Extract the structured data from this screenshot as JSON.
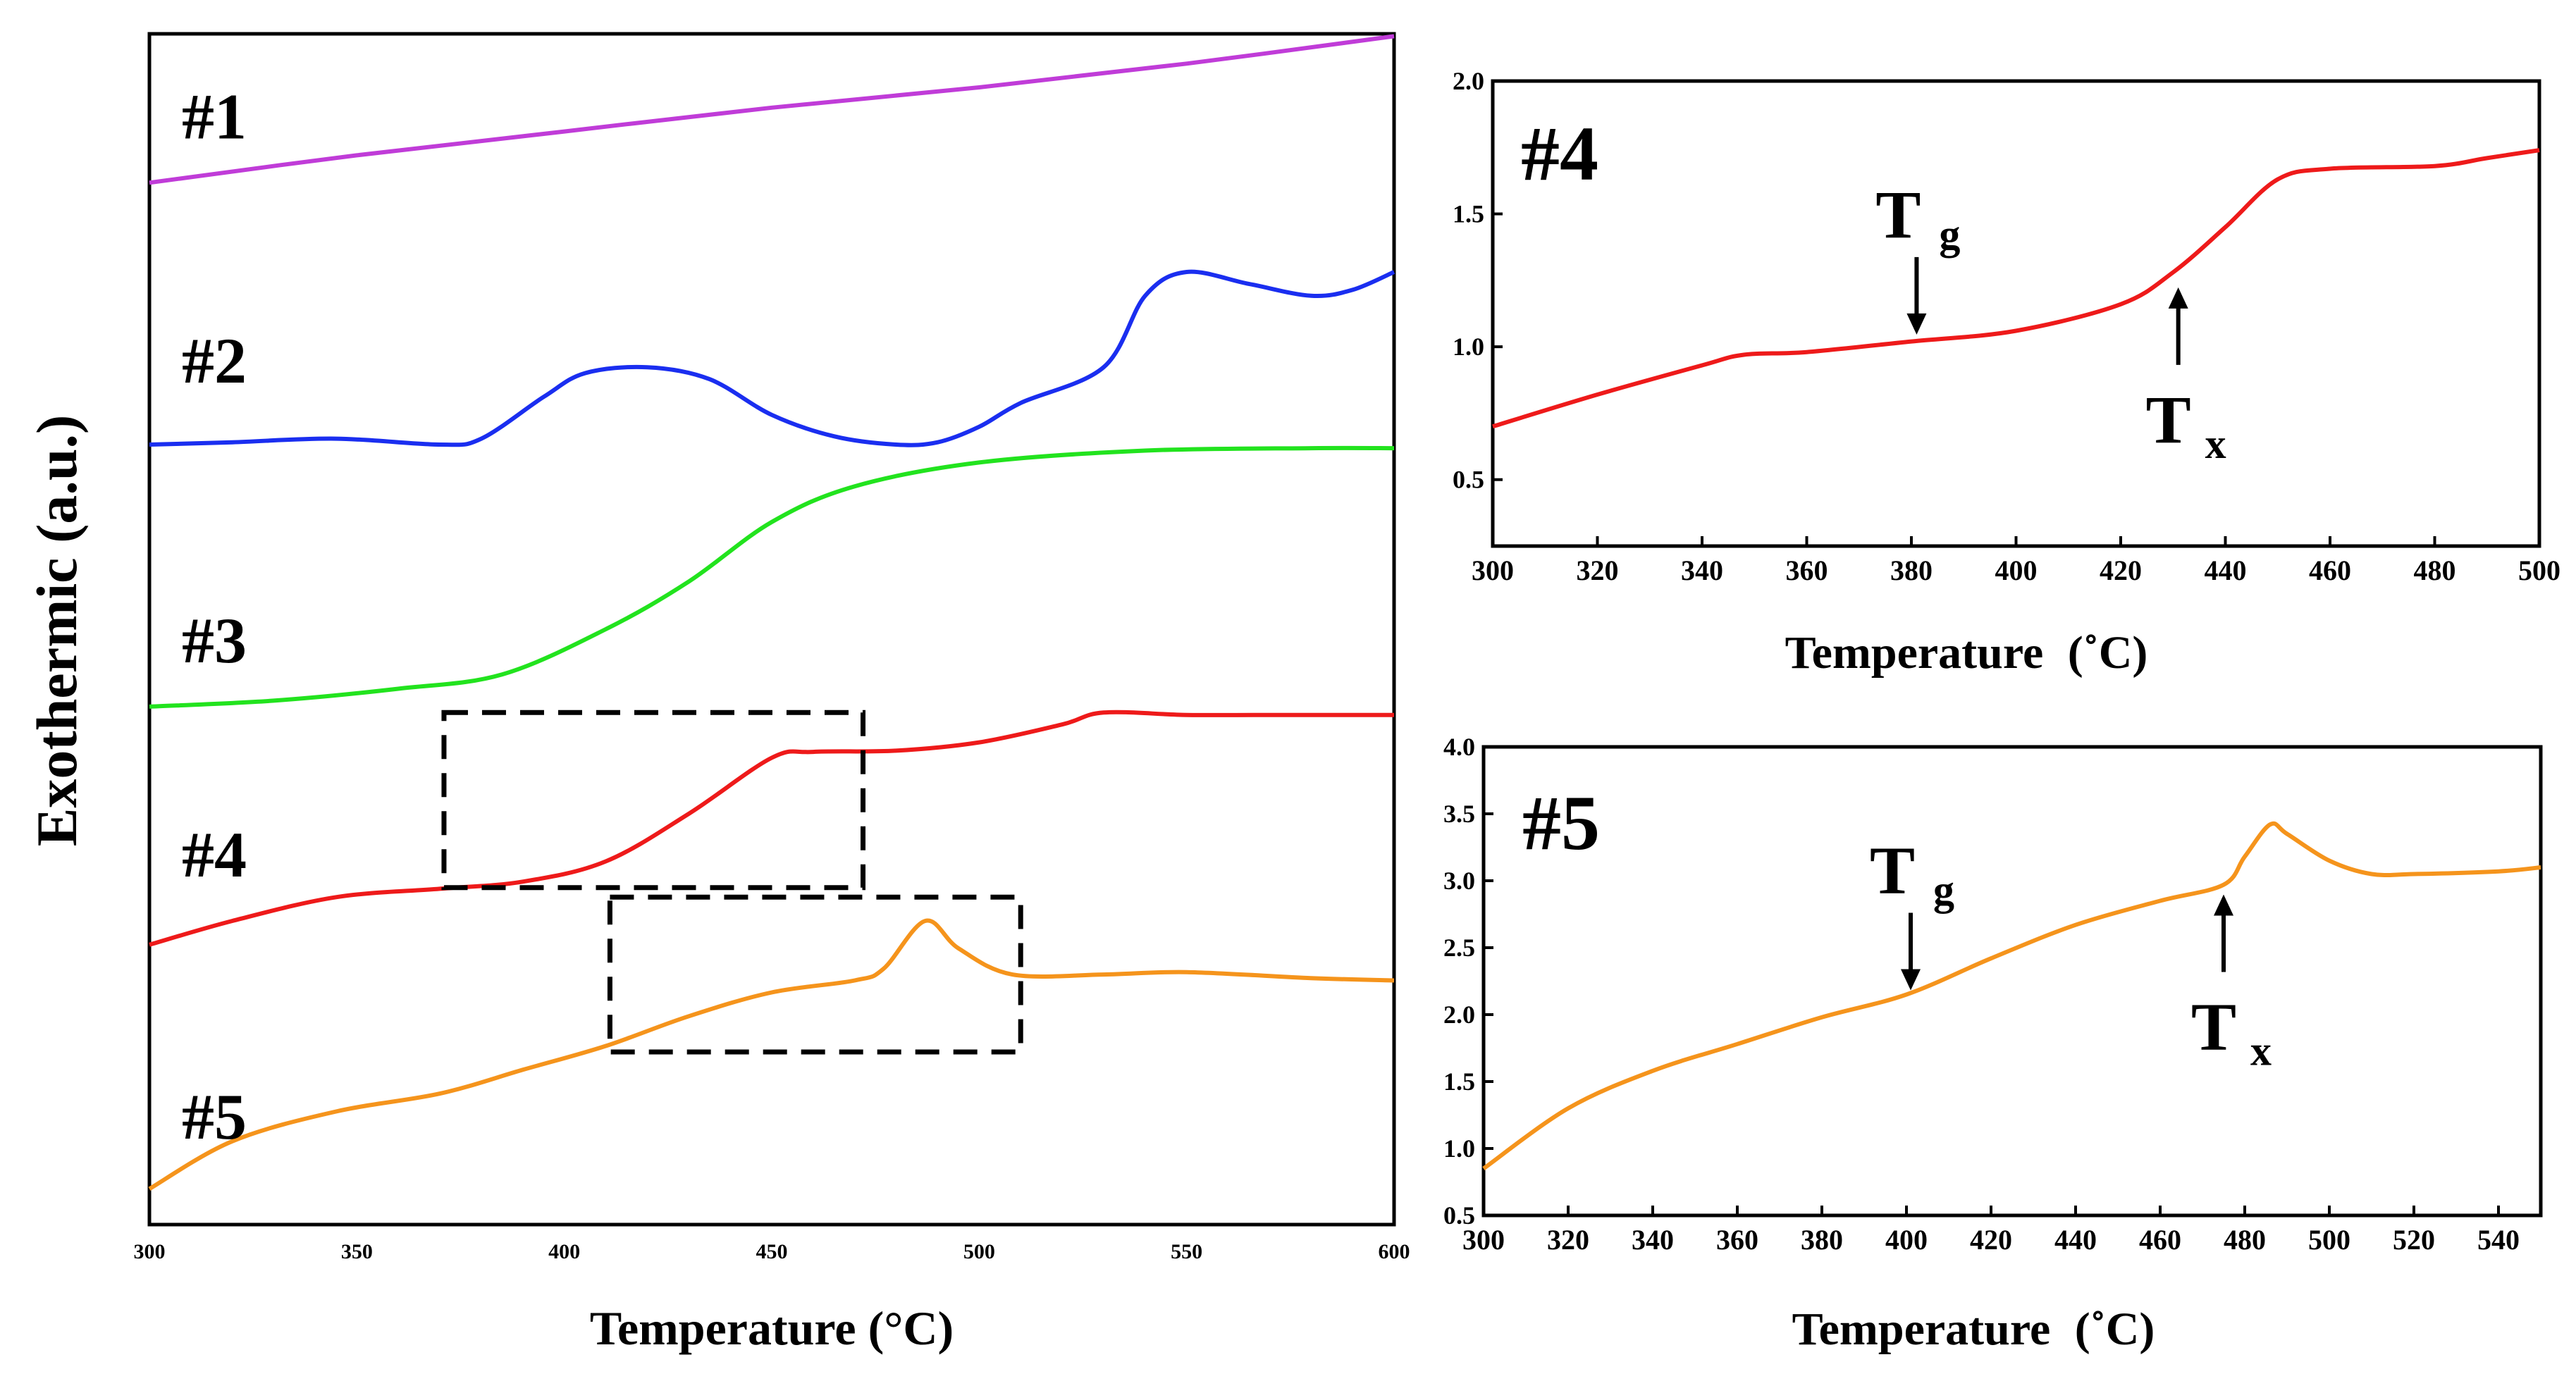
{
  "chart_data": [
    {
      "type": "line",
      "title": "",
      "xlabel": "Temperature (°C)",
      "ylabel": "Exothermic (a.u.)",
      "xlim": [
        300,
        600
      ],
      "ylim": [
        0,
        10
      ],
      "x_ticks": [
        "300",
        "350",
        "400",
        "450",
        "500",
        "550",
        "600"
      ],
      "series": [
        {
          "name": "#1",
          "color": "#c03cd8",
          "x": [
            300,
            350,
            400,
            450,
            500,
            550,
            600
          ],
          "y": [
            8.75,
            8.98,
            9.18,
            9.38,
            9.55,
            9.75,
            9.98
          ]
        },
        {
          "name": "#2",
          "color": "#1a2ef0",
          "x": [
            300,
            320,
            345,
            370,
            380,
            395,
            405,
            420,
            435,
            450,
            465,
            480,
            490,
            500,
            510,
            530,
            540,
            550,
            565,
            580,
            590,
            600
          ],
          "y": [
            6.55,
            6.57,
            6.6,
            6.55,
            6.6,
            6.95,
            7.15,
            7.2,
            7.1,
            6.8,
            6.62,
            6.55,
            6.57,
            6.7,
            6.9,
            7.2,
            7.8,
            8.0,
            7.9,
            7.8,
            7.85,
            8.0
          ],
          "label_y": 7.25
        },
        {
          "name": "#3",
          "color": "#22e31e",
          "x": [
            300,
            330,
            360,
            385,
            410,
            430,
            450,
            470,
            500,
            540,
            580,
            600
          ],
          "y": [
            4.35,
            4.4,
            4.5,
            4.62,
            5.0,
            5.4,
            5.9,
            6.2,
            6.4,
            6.5,
            6.52,
            6.52
          ],
          "label_y": 4.9
        },
        {
          "name": "#4",
          "color": "#ee1a1a",
          "x": [
            300,
            320,
            345,
            370,
            390,
            410,
            430,
            450,
            460,
            480,
            500,
            520,
            530,
            550,
            570,
            600
          ],
          "y": [
            2.35,
            2.55,
            2.75,
            2.82,
            2.88,
            3.05,
            3.45,
            3.92,
            3.97,
            3.98,
            4.05,
            4.2,
            4.3,
            4.28,
            4.28,
            4.28
          ],
          "label_y": 3.1
        },
        {
          "name": "#5",
          "color": "#f5941c",
          "x": [
            300,
            320,
            345,
            370,
            390,
            410,
            430,
            450,
            470,
            477,
            487,
            495,
            508,
            530,
            550,
            580,
            600
          ],
          "y": [
            0.3,
            0.7,
            0.95,
            1.1,
            1.3,
            1.5,
            1.75,
            1.95,
            2.05,
            2.15,
            2.55,
            2.32,
            2.1,
            2.1,
            2.12,
            2.07,
            2.05
          ],
          "label_y": 0.9
        }
      ],
      "zoom_boxes": [
        {
          "x0": 371,
          "x1": 472,
          "y0": 2.83,
          "y1": 4.3
        },
        {
          "x0": 411,
          "x1": 510,
          "y0": 1.45,
          "y1": 2.75
        }
      ]
    },
    {
      "type": "line",
      "title": "#4",
      "xlabel": "Temperature",
      "xlabel_unit": "(˚C)",
      "ylabel": "",
      "xlim": [
        300,
        500
      ],
      "ylim": [
        0.25,
        2.0
      ],
      "x_ticks": [
        "300",
        "320",
        "340",
        "360",
        "380",
        "400",
        "420",
        "440",
        "460",
        "480",
        "500"
      ],
      "y_ticks": [
        "0.5",
        "1.0",
        "1.5",
        "2.0"
      ],
      "series": [
        {
          "name": "#4",
          "color": "#ee1a1a",
          "x": [
            300,
            320,
            340,
            348,
            360,
            380,
            400,
            420,
            430,
            440,
            450,
            460,
            480,
            490,
            500
          ],
          "y": [
            0.7,
            0.82,
            0.93,
            0.97,
            0.98,
            1.02,
            1.06,
            1.16,
            1.28,
            1.45,
            1.63,
            1.67,
            1.68,
            1.71,
            1.74
          ]
        }
      ],
      "annotations": [
        {
          "label": "T",
          "sub": "g",
          "x": 381,
          "y": 1.03,
          "direction": "down"
        },
        {
          "label": "T",
          "sub": "x",
          "x": 431,
          "y": 1.25,
          "direction": "up"
        }
      ]
    },
    {
      "type": "line",
      "title": "#5",
      "xlabel": "Temperature",
      "xlabel_unit": "(˚C)",
      "ylabel": "",
      "xlim": [
        300,
        550
      ],
      "ylim": [
        0.5,
        4.0
      ],
      "x_ticks": [
        "300",
        "320",
        "340",
        "360",
        "380",
        "400",
        "420",
        "440",
        "460",
        "480",
        "500",
        "520",
        "540"
      ],
      "y_ticks": [
        "0.5",
        "1.0",
        "1.5",
        "2.0",
        "2.5",
        "3.0",
        "3.5",
        "4.0"
      ],
      "series": [
        {
          "name": "#5",
          "color": "#f5941c",
          "x": [
            300,
            320,
            340,
            360,
            380,
            400,
            420,
            440,
            460,
            475,
            480,
            486,
            490,
            500,
            510,
            520,
            540,
            550
          ],
          "y": [
            0.85,
            1.3,
            1.58,
            1.78,
            1.98,
            2.15,
            2.42,
            2.67,
            2.85,
            2.97,
            3.18,
            3.42,
            3.35,
            3.15,
            3.05,
            3.05,
            3.07,
            3.1
          ]
        }
      ],
      "annotations": [
        {
          "label": "T",
          "sub": "g",
          "x": 401,
          "y": 2.15,
          "direction": "down"
        },
        {
          "label": "T",
          "sub": "x",
          "x": 475,
          "y": 2.95,
          "direction": "up"
        }
      ]
    }
  ]
}
